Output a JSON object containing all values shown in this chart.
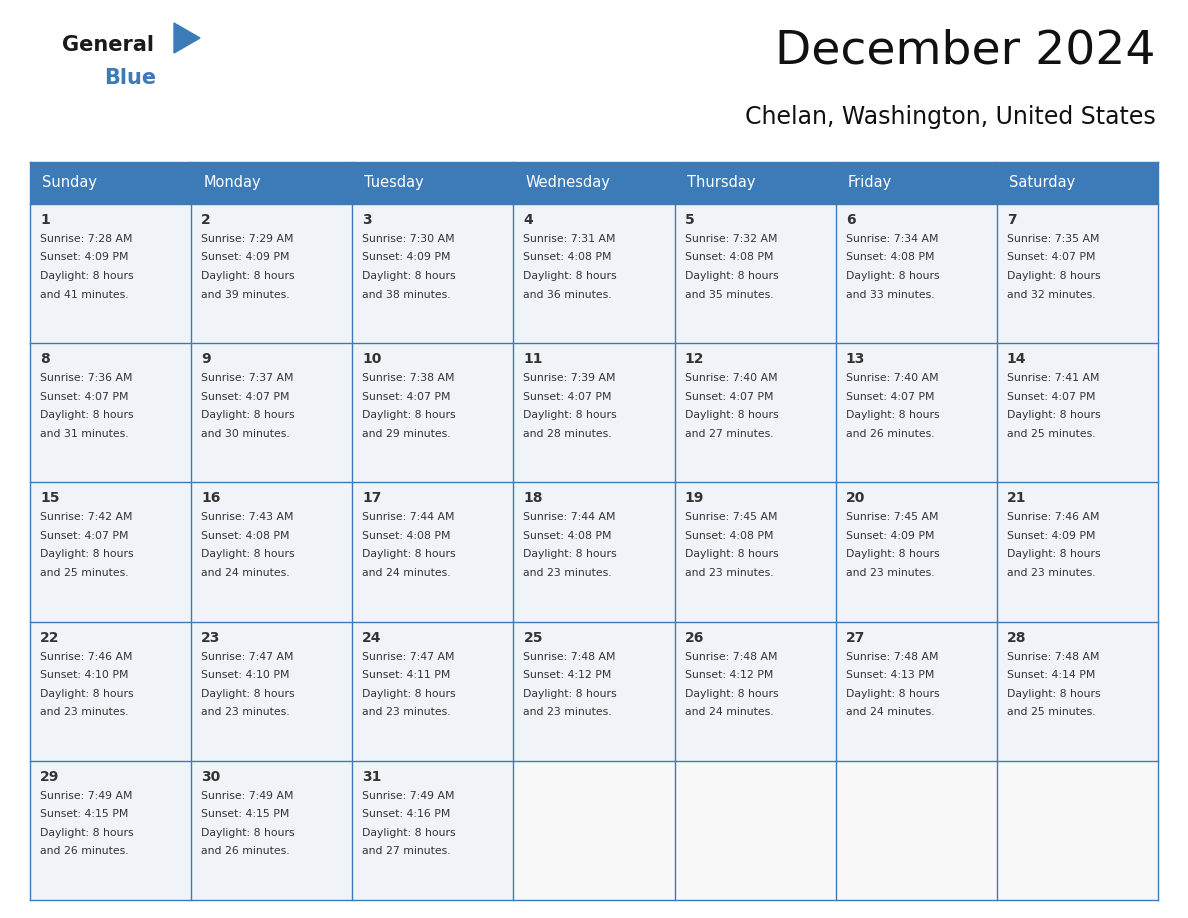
{
  "title": "December 2024",
  "subtitle": "Chelan, Washington, United States",
  "header_bg_color": "#3c7ab8",
  "header_text_color": "#ffffff",
  "cell_bg_color": "#f0f4f8",
  "cell_bg_empty": "#f8f8f8",
  "border_color": "#3c7ab8",
  "text_color": "#333333",
  "days_of_week": [
    "Sunday",
    "Monday",
    "Tuesday",
    "Wednesday",
    "Thursday",
    "Friday",
    "Saturday"
  ],
  "calendar_data": [
    [
      {
        "day": 1,
        "sunrise": "7:28 AM",
        "sunset": "4:09 PM",
        "daylight_suffix": "41 minutes."
      },
      {
        "day": 2,
        "sunrise": "7:29 AM",
        "sunset": "4:09 PM",
        "daylight_suffix": "39 minutes."
      },
      {
        "day": 3,
        "sunrise": "7:30 AM",
        "sunset": "4:09 PM",
        "daylight_suffix": "38 minutes."
      },
      {
        "day": 4,
        "sunrise": "7:31 AM",
        "sunset": "4:08 PM",
        "daylight_suffix": "36 minutes."
      },
      {
        "day": 5,
        "sunrise": "7:32 AM",
        "sunset": "4:08 PM",
        "daylight_suffix": "35 minutes."
      },
      {
        "day": 6,
        "sunrise": "7:34 AM",
        "sunset": "4:08 PM",
        "daylight_suffix": "33 minutes."
      },
      {
        "day": 7,
        "sunrise": "7:35 AM",
        "sunset": "4:07 PM",
        "daylight_suffix": "32 minutes."
      }
    ],
    [
      {
        "day": 8,
        "sunrise": "7:36 AM",
        "sunset": "4:07 PM",
        "daylight_suffix": "31 minutes."
      },
      {
        "day": 9,
        "sunrise": "7:37 AM",
        "sunset": "4:07 PM",
        "daylight_suffix": "30 minutes."
      },
      {
        "day": 10,
        "sunrise": "7:38 AM",
        "sunset": "4:07 PM",
        "daylight_suffix": "29 minutes."
      },
      {
        "day": 11,
        "sunrise": "7:39 AM",
        "sunset": "4:07 PM",
        "daylight_suffix": "28 minutes."
      },
      {
        "day": 12,
        "sunrise": "7:40 AM",
        "sunset": "4:07 PM",
        "daylight_suffix": "27 minutes."
      },
      {
        "day": 13,
        "sunrise": "7:40 AM",
        "sunset": "4:07 PM",
        "daylight_suffix": "26 minutes."
      },
      {
        "day": 14,
        "sunrise": "7:41 AM",
        "sunset": "4:07 PM",
        "daylight_suffix": "25 minutes."
      }
    ],
    [
      {
        "day": 15,
        "sunrise": "7:42 AM",
        "sunset": "4:07 PM",
        "daylight_suffix": "25 minutes."
      },
      {
        "day": 16,
        "sunrise": "7:43 AM",
        "sunset": "4:08 PM",
        "daylight_suffix": "24 minutes."
      },
      {
        "day": 17,
        "sunrise": "7:44 AM",
        "sunset": "4:08 PM",
        "daylight_suffix": "24 minutes."
      },
      {
        "day": 18,
        "sunrise": "7:44 AM",
        "sunset": "4:08 PM",
        "daylight_suffix": "23 minutes."
      },
      {
        "day": 19,
        "sunrise": "7:45 AM",
        "sunset": "4:08 PM",
        "daylight_suffix": "23 minutes."
      },
      {
        "day": 20,
        "sunrise": "7:45 AM",
        "sunset": "4:09 PM",
        "daylight_suffix": "23 minutes."
      },
      {
        "day": 21,
        "sunrise": "7:46 AM",
        "sunset": "4:09 PM",
        "daylight_suffix": "23 minutes."
      }
    ],
    [
      {
        "day": 22,
        "sunrise": "7:46 AM",
        "sunset": "4:10 PM",
        "daylight_suffix": "23 minutes."
      },
      {
        "day": 23,
        "sunrise": "7:47 AM",
        "sunset": "4:10 PM",
        "daylight_suffix": "23 minutes."
      },
      {
        "day": 24,
        "sunrise": "7:47 AM",
        "sunset": "4:11 PM",
        "daylight_suffix": "23 minutes."
      },
      {
        "day": 25,
        "sunrise": "7:48 AM",
        "sunset": "4:12 PM",
        "daylight_suffix": "23 minutes."
      },
      {
        "day": 26,
        "sunrise": "7:48 AM",
        "sunset": "4:12 PM",
        "daylight_suffix": "24 minutes."
      },
      {
        "day": 27,
        "sunrise": "7:48 AM",
        "sunset": "4:13 PM",
        "daylight_suffix": "24 minutes."
      },
      {
        "day": 28,
        "sunrise": "7:48 AM",
        "sunset": "4:14 PM",
        "daylight_suffix": "25 minutes."
      }
    ],
    [
      {
        "day": 29,
        "sunrise": "7:49 AM",
        "sunset": "4:15 PM",
        "daylight_suffix": "26 minutes."
      },
      {
        "day": 30,
        "sunrise": "7:49 AM",
        "sunset": "4:15 PM",
        "daylight_suffix": "26 minutes."
      },
      {
        "day": 31,
        "sunrise": "7:49 AM",
        "sunset": "4:16 PM",
        "daylight_suffix": "27 minutes."
      },
      null,
      null,
      null,
      null
    ]
  ]
}
